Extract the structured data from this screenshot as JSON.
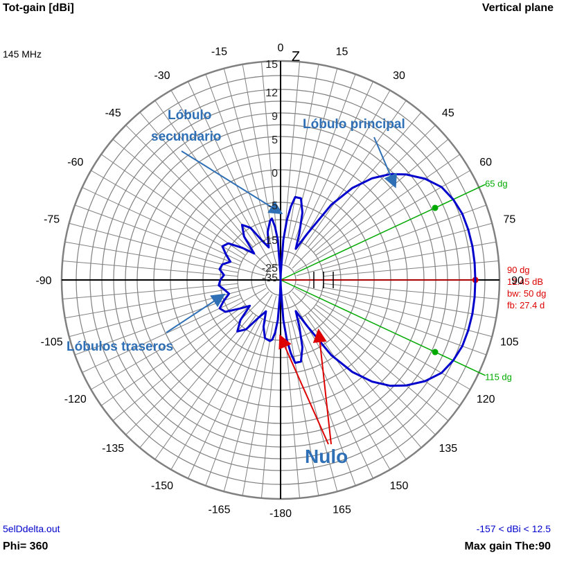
{
  "header": {
    "title_left": "Tot-gain [dBi]",
    "frequency": "145 MHz",
    "title_right": "Vertical plane"
  },
  "footer": {
    "file": "5elDdelta.out",
    "phi": "Phi= 360",
    "range": "-157 < dBi < 12.5",
    "max_gain": "Max gain The:90"
  },
  "colors": {
    "grid": "#808080",
    "pattern": "#0000cc",
    "max_line": "#dd0000",
    "beamwidth": "#00aa00",
    "annotation": "#2e6fb5",
    "arrow": "#dd0000"
  },
  "chart_data": {
    "type": "polar",
    "plane": "vertical",
    "angle_labels": [
      "0",
      "15",
      "30",
      "45",
      "60",
      "75",
      "90",
      "105",
      "120",
      "135",
      "150",
      "165",
      "-180",
      "-165",
      "-150",
      "-135",
      "-120",
      "-105",
      "-90",
      "-75",
      "-60",
      "-45",
      "-30",
      "-15"
    ],
    "radial_labels": [
      "15",
      "12",
      "9",
      "5",
      "0",
      "-5",
      "-15",
      "-25",
      "-35"
    ],
    "radial_label_values": [
      15,
      12,
      9,
      5,
      0,
      -5,
      -15,
      -25,
      -35
    ],
    "axis_label": "Z",
    "max_gain": {
      "angle_deg": 90,
      "label_angle": "90 dg",
      "label_gain": "12.45 dB",
      "label_bw": "bw: 50 dg",
      "label_fb": "fb: 27.4 d"
    },
    "beamwidth_lines": [
      {
        "angle_deg": 65,
        "label": "65 dg"
      },
      {
        "angle_deg": 115,
        "label": "115 dg"
      }
    ],
    "pattern": {
      "angles_deg": [
        0,
        2,
        4,
        6,
        8,
        10,
        14,
        18,
        22,
        26,
        30,
        34,
        38,
        42,
        46,
        50,
        55,
        60,
        65,
        70,
        75,
        80,
        85,
        90,
        95,
        100,
        105,
        110,
        115,
        120,
        125,
        130,
        134,
        138,
        142,
        146,
        150,
        154,
        158,
        162,
        166,
        170,
        172,
        174,
        176,
        178,
        180,
        182,
        184,
        186,
        188,
        190,
        195,
        200,
        205,
        210,
        215,
        220,
        225,
        230,
        235,
        240,
        245,
        250,
        255,
        260,
        265,
        270,
        275,
        280,
        285,
        290,
        295,
        300,
        305,
        310,
        315,
        320,
        325,
        330,
        335,
        340,
        345,
        350,
        352,
        354,
        356,
        358
      ],
      "gain_dbi": [
        -40,
        -34,
        -16,
        -10,
        -6,
        -4,
        -4,
        -7,
        -13,
        -18,
        -12,
        -3,
        1,
        4,
        6.5,
        8.5,
        10.2,
        11.4,
        12,
        12.3,
        12.4,
        12.45,
        12.45,
        12.45,
        12.45,
        12.45,
        12.4,
        12.3,
        12,
        11.4,
        10.2,
        8.5,
        6.5,
        4,
        1,
        -3,
        -12,
        -18,
        -13,
        -7,
        -4,
        -4,
        -6,
        -10,
        -16,
        -34,
        -40,
        -28,
        -16,
        -12,
        -10,
        -9.5,
        -10,
        -13,
        -18,
        -15,
        -10,
        -8,
        -11,
        -16,
        -13,
        -9,
        -8,
        -10,
        -12,
        -11,
        -9.5,
        -10,
        -11,
        -9.5,
        -10,
        -12,
        -10,
        -8,
        -9,
        -13,
        -17,
        -11,
        -8,
        -10,
        -15,
        -18,
        -13,
        -10,
        -9.5,
        -12,
        -16,
        -34
      ]
    }
  },
  "annotations": {
    "secondary_lobe": [
      "Lóbulo",
      "secundario"
    ],
    "main_lobe": "Lóbulo principal",
    "back_lobes": "Lóbulos traseros",
    "null": "Nulo"
  }
}
